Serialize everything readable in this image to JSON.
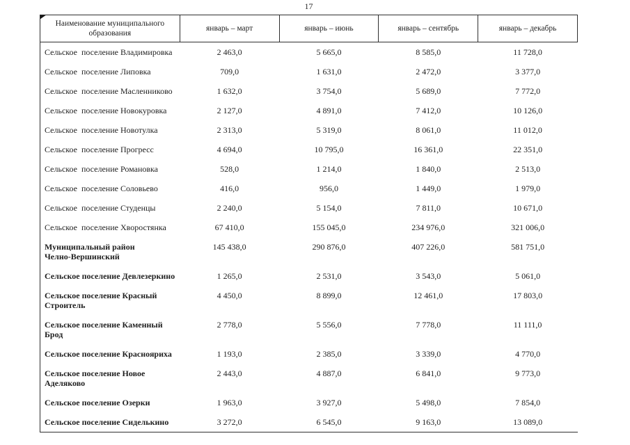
{
  "page": {
    "number": "17"
  },
  "colors": {
    "border": "#2e2e2e",
    "text": "#1f1f1f",
    "background": "#ffffff"
  },
  "table": {
    "columns": [
      "Наименование муниципального образования",
      "январь – март",
      "январь – июнь",
      "январь – сентябрь",
      "январь – декабрь"
    ],
    "rows": [
      {
        "name": "Сельское  поселение Владимировка",
        "bold": false,
        "values": [
          "2 463,0",
          "5 665,0",
          "8 585,0",
          "11 728,0"
        ]
      },
      {
        "name": "Сельское  поселение Липовка",
        "bold": false,
        "values": [
          "709,0",
          "1 631,0",
          "2 472,0",
          "3 377,0"
        ]
      },
      {
        "name": "Сельское  поселение Масленниково",
        "bold": false,
        "values": [
          "1 632,0",
          "3 754,0",
          "5 689,0",
          "7 772,0"
        ]
      },
      {
        "name": "Сельское  поселение Новокуровка",
        "bold": false,
        "values": [
          "2 127,0",
          "4 891,0",
          "7 412,0",
          "10 126,0"
        ]
      },
      {
        "name": "Сельское  поселение Новотулка",
        "bold": false,
        "values": [
          "2 313,0",
          "5 319,0",
          "8 061,0",
          "11 012,0"
        ]
      },
      {
        "name": "Сельское  поселение Прогресс",
        "bold": false,
        "values": [
          "4 694,0",
          "10 795,0",
          "16 361,0",
          "22 351,0"
        ]
      },
      {
        "name": "Сельское  поселение Романовка",
        "bold": false,
        "values": [
          "528,0",
          "1 214,0",
          "1 840,0",
          "2 513,0"
        ]
      },
      {
        "name": "Сельское  поселение Соловьево",
        "bold": false,
        "values": [
          "416,0",
          "956,0",
          "1 449,0",
          "1 979,0"
        ]
      },
      {
        "name": "Сельское  поселение Студенцы",
        "bold": false,
        "values": [
          "2 240,0",
          "5 154,0",
          "7 811,0",
          "10 671,0"
        ]
      },
      {
        "name": "Сельское  поселение Хворостянка",
        "bold": false,
        "values": [
          "67 410,0",
          "155 045,0",
          "234 976,0",
          "321 006,0"
        ]
      },
      {
        "name": "Муниципальный район\nЧелно-Вершинский",
        "bold": true,
        "values": [
          "145 438,0",
          "290 876,0",
          "407 226,0",
          "581 751,0"
        ]
      },
      {
        "name": "Сельское поселение Девлезеркино",
        "bold": true,
        "values": [
          "1 265,0",
          "2 531,0",
          "3 543,0",
          "5 061,0"
        ]
      },
      {
        "name": "Сельское поселение Красный Строитель",
        "bold": true,
        "values": [
          "4 450,0",
          "8 899,0",
          "12 461,0",
          "17 803,0"
        ]
      },
      {
        "name": "Сельское поселение Каменный Брод",
        "bold": true,
        "values": [
          "2 778,0",
          "5 556,0",
          "7 778,0",
          "11 111,0"
        ]
      },
      {
        "name": "Сельское поселение Краснояриха",
        "bold": true,
        "values": [
          "1 193,0",
          "2 385,0",
          "3 339,0",
          "4 770,0"
        ]
      },
      {
        "name": "Сельское поселение Новое Аделяково",
        "bold": true,
        "values": [
          "2 443,0",
          "4 887,0",
          "6 841,0",
          "9 773,0"
        ]
      },
      {
        "name": "Сельское поселение Озерки",
        "bold": true,
        "values": [
          "1 963,0",
          "3 927,0",
          "5 498,0",
          "7 854,0"
        ]
      },
      {
        "name": "Сельское поселение Сиделькино",
        "bold": true,
        "values": [
          "3 272,0",
          "6 545,0",
          "9 163,0",
          "13 089,0"
        ]
      }
    ]
  }
}
